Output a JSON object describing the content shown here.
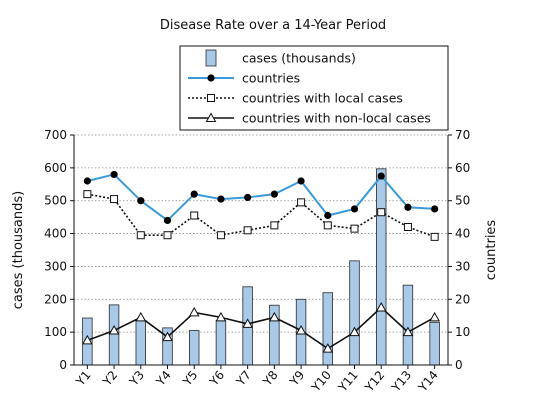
{
  "chart_data": {
    "type": "bar",
    "title": "Disease Rate over a 14-Year Period",
    "categories": [
      "Y1",
      "Y2",
      "Y3",
      "Y4",
      "Y5",
      "Y6",
      "Y7",
      "Y8",
      "Y9",
      "Y10",
      "Y11",
      "Y12",
      "Y13",
      "Y14"
    ],
    "ylabel": "cases (thousands)",
    "ylabel_right": "countries",
    "ylim": [
      0,
      700
    ],
    "ylim_right": [
      0,
      70
    ],
    "yticks": [
      0,
      100,
      200,
      300,
      400,
      500,
      600,
      700
    ],
    "yticks_right": [
      0,
      10,
      20,
      30,
      40,
      50,
      60,
      70
    ],
    "grid": true,
    "legend_position": "top",
    "series": [
      {
        "name": "cases (thousands)",
        "type": "bar",
        "axis": "left",
        "values": [
          143,
          183,
          135,
          113,
          105,
          135,
          238,
          182,
          200,
          220,
          317,
          597,
          243,
          130
        ]
      },
      {
        "name": "countries",
        "type": "line",
        "axis": "right",
        "marker": "filled-circle",
        "values": [
          56,
          58,
          50,
          44,
          52,
          50.5,
          51,
          52,
          56,
          45.5,
          47.5,
          57.5,
          48,
          47.5
        ]
      },
      {
        "name": "countries with local cases",
        "type": "line",
        "axis": "right",
        "marker": "open-square",
        "dashed": true,
        "values": [
          52,
          50.5,
          39.5,
          39.5,
          45.5,
          39.5,
          41,
          42.5,
          49.5,
          42.5,
          41.5,
          46.5,
          42,
          39
        ]
      },
      {
        "name": "countries with non-local cases",
        "type": "line",
        "axis": "right",
        "marker": "open-triangle",
        "values": [
          7.5,
          10.5,
          14.5,
          8.5,
          16,
          14.5,
          12.5,
          14.5,
          10.5,
          5,
          10,
          17.5,
          10,
          14.5
        ]
      }
    ],
    "colors": {
      "bar_fill": "#a9c9e8",
      "bar_stroke": "#2b2b2b",
      "countries_line": "#3a9ad9",
      "local_line": "#111111",
      "nonlocal_line": "#111111",
      "grid": "#888888"
    }
  }
}
